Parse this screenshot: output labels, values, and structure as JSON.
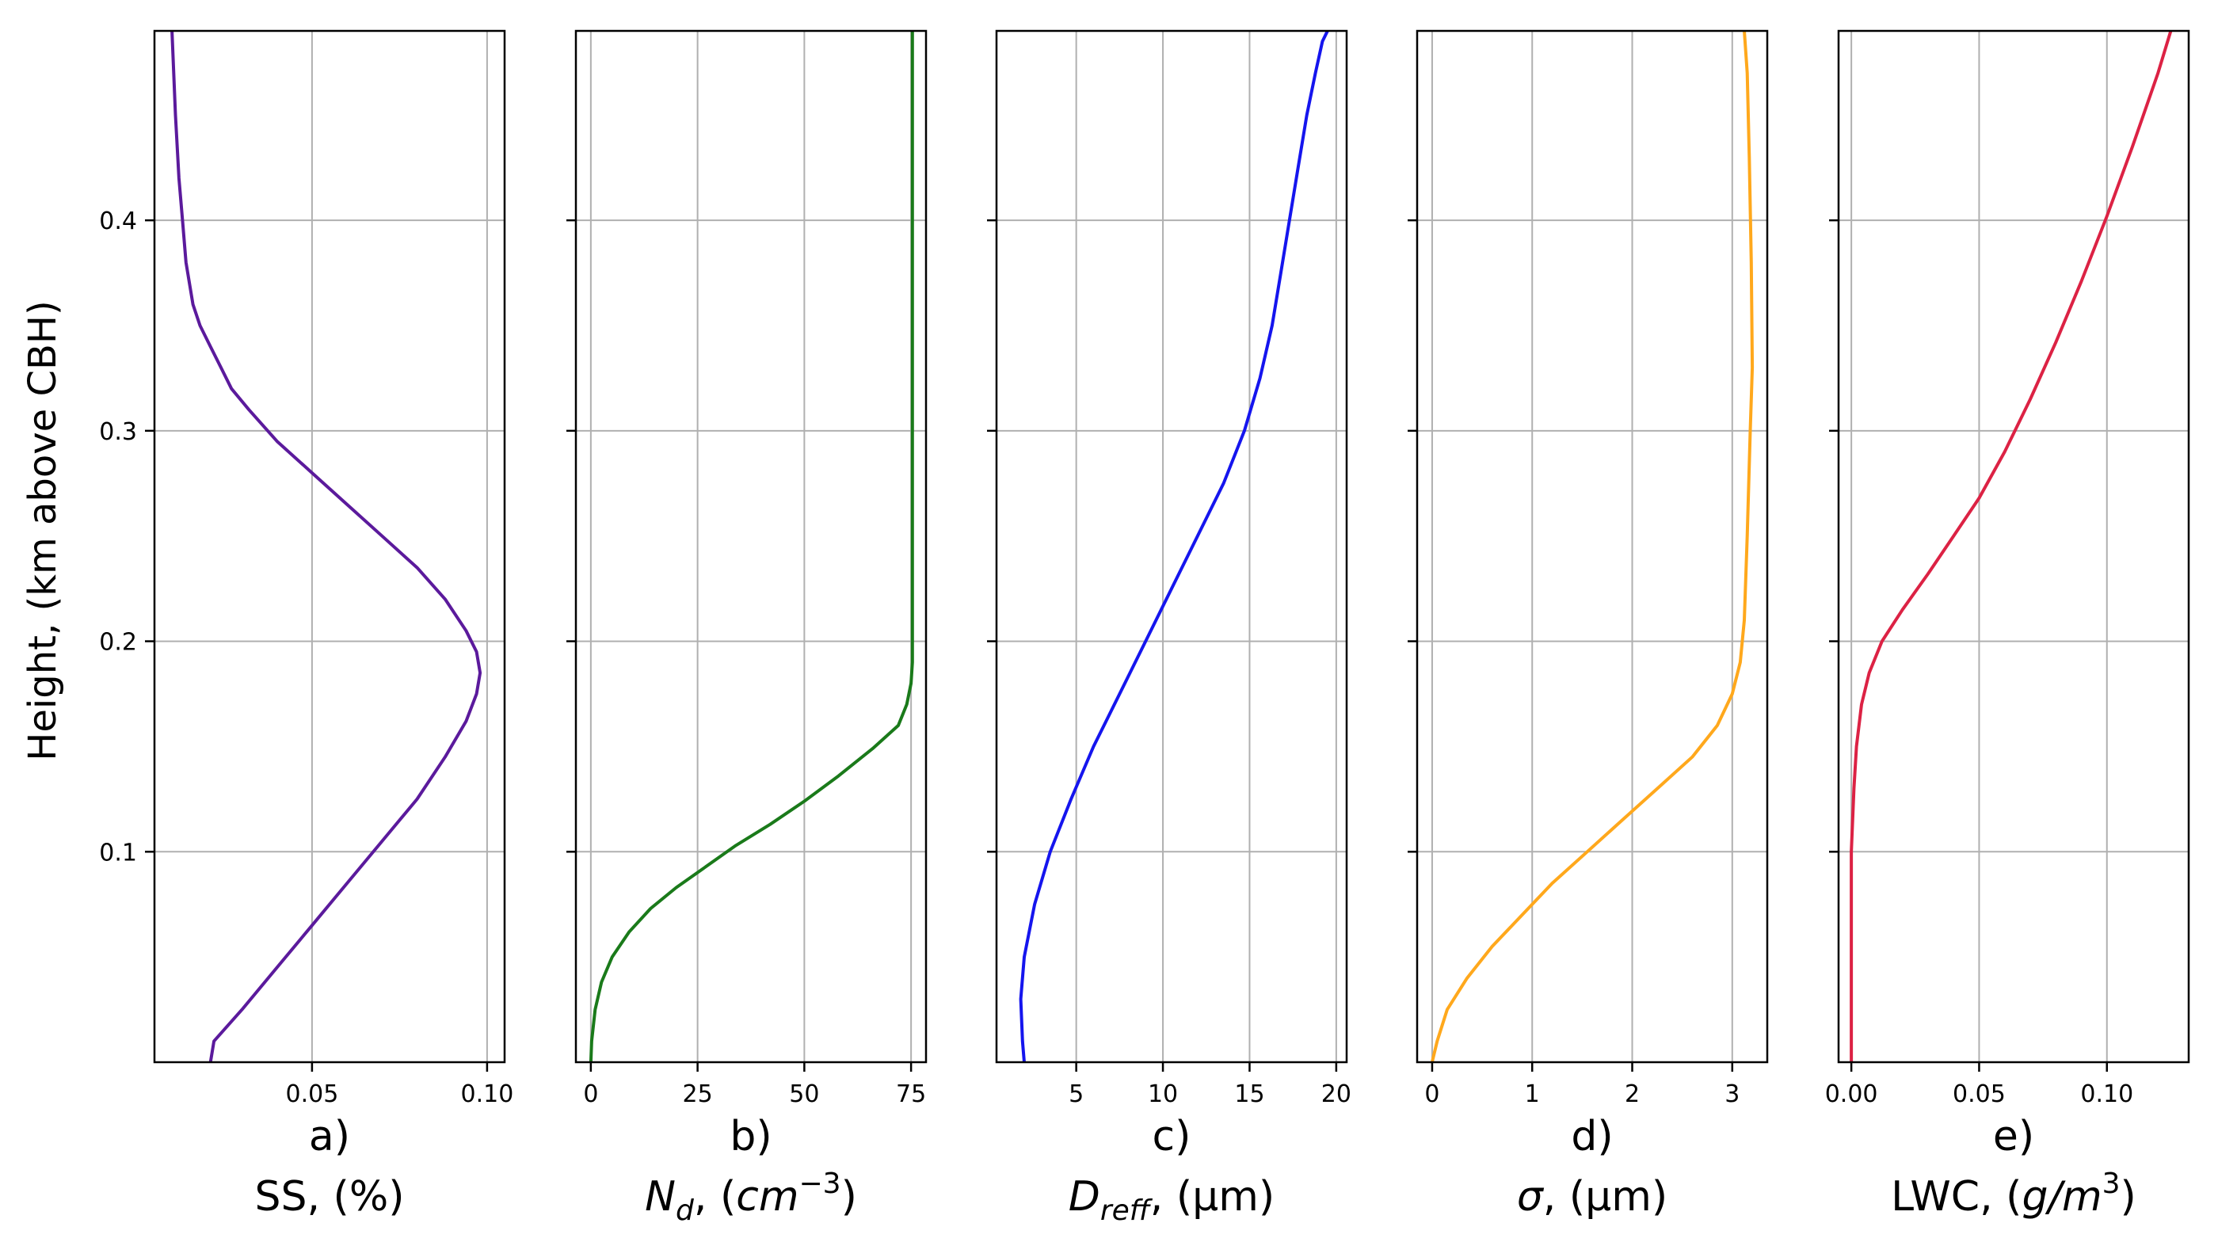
{
  "figure": {
    "ylabel": "Height, (km above CBH)"
  },
  "chart_data": [
    {
      "type": "line",
      "panel_label": "a)",
      "xlabel": {
        "main": "SS, (%)"
      },
      "ylabel": "Height, (km above CBH)",
      "xlim": [
        0.005,
        0.105
      ],
      "ylim": [
        0.0,
        0.49
      ],
      "xticks": [
        0.05,
        0.1
      ],
      "xtick_labels": [
        "0.05",
        "0.10"
      ],
      "yticks": [
        0.1,
        0.2,
        0.3,
        0.4
      ],
      "ytick_labels": [
        "0.1",
        "0.2",
        "0.3",
        "0.4"
      ],
      "grid": true,
      "series": [
        {
          "color": "#5b1a9c",
          "x": [
            0.021,
            0.022,
            0.03,
            0.04,
            0.05,
            0.06,
            0.07,
            0.08,
            0.088,
            0.094,
            0.097,
            0.098,
            0.097,
            0.094,
            0.088,
            0.08,
            0.07,
            0.06,
            0.05,
            0.04,
            0.032,
            0.027,
            0.024,
            0.021,
            0.018,
            0.016,
            0.014,
            0.013,
            0.012,
            0.011,
            0.01
          ],
          "y": [
            0.0,
            0.01,
            0.025,
            0.045,
            0.065,
            0.085,
            0.105,
            0.125,
            0.145,
            0.162,
            0.175,
            0.185,
            0.195,
            0.205,
            0.22,
            0.235,
            0.25,
            0.265,
            0.28,
            0.295,
            0.31,
            0.32,
            0.33,
            0.34,
            0.35,
            0.36,
            0.38,
            0.4,
            0.42,
            0.45,
            0.49
          ]
        }
      ]
    },
    {
      "type": "line",
      "panel_label": "b)",
      "xlabel": {
        "main": "N",
        "sub": "d",
        "post": ", (",
        "italic": "cm",
        "sup": "−3",
        "end": ")"
      },
      "ylabel": "",
      "xlim": [
        -3.5,
        78.5
      ],
      "ylim": [
        0.0,
        0.49
      ],
      "xticks": [
        0,
        25,
        50,
        75
      ],
      "xtick_labels": [
        "0",
        "25",
        "50",
        "75"
      ],
      "yticks": [
        0.1,
        0.2,
        0.3,
        0.4
      ],
      "grid": true,
      "series": [
        {
          "color": "#1a7a1a",
          "x": [
            0.0,
            0.2,
            1.0,
            2.5,
            5.0,
            9.0,
            14.0,
            20.0,
            27.0,
            34.0,
            42.0,
            50.0,
            58.0,
            66.0,
            72.0,
            74.0,
            75.0,
            75.3,
            75.3,
            75.3
          ],
          "y": [
            0.0,
            0.01,
            0.025,
            0.038,
            0.05,
            0.062,
            0.073,
            0.083,
            0.093,
            0.103,
            0.113,
            0.124,
            0.136,
            0.149,
            0.16,
            0.17,
            0.18,
            0.19,
            0.3,
            0.49
          ]
        }
      ]
    },
    {
      "type": "line",
      "panel_label": "c)",
      "xlabel": {
        "main": "D",
        "sub": "reff",
        "post": ", (",
        "plain": "μm",
        "end": ")"
      },
      "ylabel": "",
      "xlim": [
        0.4,
        20.6
      ],
      "ylim": [
        0.0,
        0.49
      ],
      "xticks": [
        5,
        10,
        15,
        20
      ],
      "xtick_labels": [
        "5",
        "10",
        "15",
        "20"
      ],
      "yticks": [
        0.1,
        0.2,
        0.3,
        0.4
      ],
      "grid": true,
      "series": [
        {
          "color": "#1515ee",
          "x": [
            2.0,
            1.9,
            1.8,
            2.0,
            2.6,
            3.5,
            4.7,
            6.0,
            7.5,
            9.0,
            10.5,
            12.0,
            13.5,
            14.7,
            15.6,
            16.3,
            16.8,
            17.3,
            17.8,
            18.3,
            18.8,
            19.2,
            19.5
          ],
          "y": [
            0.0,
            0.01,
            0.03,
            0.05,
            0.075,
            0.1,
            0.125,
            0.15,
            0.175,
            0.2,
            0.225,
            0.25,
            0.275,
            0.3,
            0.325,
            0.35,
            0.375,
            0.4,
            0.425,
            0.45,
            0.47,
            0.485,
            0.49
          ]
        }
      ]
    },
    {
      "type": "line",
      "panel_label": "d)",
      "xlabel": {
        "main": "σ",
        "post": ", (",
        "plain": "μm",
        "end": ")"
      },
      "ylabel": "",
      "xlim": [
        -0.15,
        3.35
      ],
      "ylim": [
        0.0,
        0.49
      ],
      "xticks": [
        0,
        1,
        2,
        3
      ],
      "xtick_labels": [
        "0",
        "1",
        "2",
        "3"
      ],
      "yticks": [
        0.1,
        0.2,
        0.3,
        0.4
      ],
      "grid": true,
      "series": [
        {
          "color": "#ffa81c",
          "x": [
            0.0,
            0.05,
            0.15,
            0.35,
            0.6,
            0.9,
            1.2,
            1.55,
            1.9,
            2.25,
            2.6,
            2.85,
            3.0,
            3.08,
            3.12,
            3.15,
            3.18,
            3.2,
            3.19,
            3.17,
            3.15,
            3.12
          ],
          "y": [
            0.0,
            0.01,
            0.025,
            0.04,
            0.055,
            0.07,
            0.085,
            0.1,
            0.115,
            0.13,
            0.145,
            0.16,
            0.175,
            0.19,
            0.21,
            0.25,
            0.3,
            0.33,
            0.38,
            0.43,
            0.47,
            0.49
          ]
        }
      ]
    },
    {
      "type": "line",
      "panel_label": "e)",
      "xlabel": {
        "main": "LWC, (",
        "italic": "g/m",
        "sup": "3",
        "end": ")"
      },
      "ylabel": "",
      "xlim": [
        -0.005,
        0.132
      ],
      "ylim": [
        0.0,
        0.49
      ],
      "xticks": [
        0.0,
        0.05,
        0.1
      ],
      "xtick_labels": [
        "0.00",
        "0.05",
        "0.10"
      ],
      "yticks": [
        0.1,
        0.2,
        0.3,
        0.4
      ],
      "grid": true,
      "series": [
        {
          "color": "#dc2244",
          "x": [
            0.0,
            0.0,
            0.0,
            0.001,
            0.002,
            0.004,
            0.007,
            0.012,
            0.02,
            0.03,
            0.04,
            0.05,
            0.06,
            0.07,
            0.08,
            0.09,
            0.1,
            0.11,
            0.12,
            0.125
          ],
          "y": [
            0.0,
            0.05,
            0.1,
            0.13,
            0.15,
            0.17,
            0.185,
            0.2,
            0.215,
            0.232,
            0.25,
            0.268,
            0.29,
            0.315,
            0.342,
            0.371,
            0.402,
            0.435,
            0.47,
            0.49
          ]
        }
      ]
    }
  ]
}
